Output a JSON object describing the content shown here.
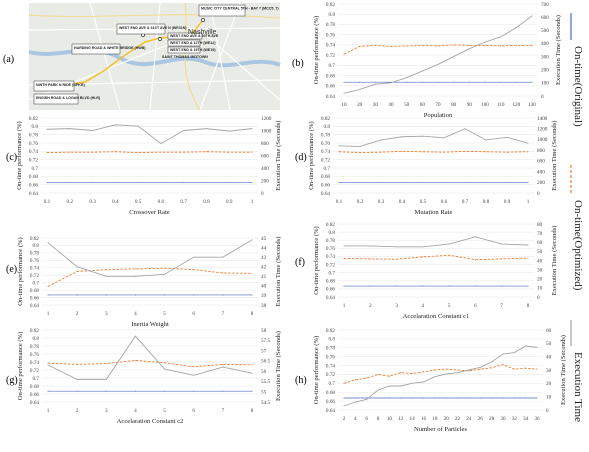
{
  "colors": {
    "original": "#4a6fc4",
    "optimized": "#ed7d31",
    "exec": "#a5a5a5",
    "map_bg": "#e9ebe6",
    "route": "#f2c232"
  },
  "legend": {
    "original": "On-time(Original)",
    "optimized": "On-time(Optimized)",
    "exec": "Execution Time"
  },
  "map": {
    "letter": "(a)",
    "city": "Nashville",
    "stops": [
      "MUSIC CITY CENTRAL 5TH - BAY 7 (MCC5_7)",
      "WEST END AVE & 31ST AVE N (WE31N)",
      "HARDING ROAD & WHITE BRIDGE (HWB)",
      "WEST END AVE & 20TH AVE",
      "WEST END & 12TH (WE12)",
      "WEST END & 19TH (WE19)",
      "SAINT THOMAS MIDTOWN",
      "NINTH PARK N RIDE (NPKR)",
      "ENGISH ROAD & LOGAN BLVD (HLR)"
    ]
  },
  "chart_data": [
    {
      "panel": "(b)",
      "type": "line",
      "xlabel": "Population",
      "ylabel": "On-time performance (%)",
      "y2label": "Execution Time (Seconds)",
      "x": [
        10,
        20,
        30,
        40,
        50,
        60,
        70,
        80,
        90,
        100,
        110,
        120,
        130
      ],
      "xticks": [
        10,
        20,
        30,
        40,
        50,
        60,
        70,
        80,
        90,
        100,
        110,
        120,
        130
      ],
      "ylim": [
        0.64,
        0.82
      ],
      "yticks": [
        "0.64",
        "0.66",
        "0.68",
        "0.7",
        "0.72",
        "0.74",
        "0.76",
        "0.78",
        "0.8",
        "0.82"
      ],
      "y2lim": [
        0,
        700
      ],
      "y2ticks": [
        "0",
        "100",
        "200",
        "300",
        "400",
        "500",
        "600",
        "700"
      ],
      "original": [
        0.667,
        0.667,
        0.667,
        0.667,
        0.667,
        0.667,
        0.667,
        0.667,
        0.667,
        0.667,
        0.667,
        0.667,
        0.667
      ],
      "optimized": [
        0.722,
        0.737,
        0.739,
        0.737,
        0.738,
        0.739,
        0.738,
        0.74,
        0.739,
        0.739,
        0.738,
        0.739,
        0.739
      ],
      "exec": [
        20,
        50,
        90,
        100,
        140,
        190,
        240,
        300,
        360,
        410,
        450,
        520,
        610
      ]
    },
    {
      "panel": "(c)",
      "type": "line",
      "xlabel": "Crossover Rate",
      "ylabel": "On-time performance (%)",
      "y2label": "Execution Time (Seconds)",
      "x": [
        0.1,
        0.2,
        0.3,
        0.4,
        0.5,
        0.6,
        0.7,
        0.8,
        0.9,
        1
      ],
      "xticks": [
        "0.1",
        "0.2",
        "0.3",
        "0.4",
        "0.5",
        "0.6",
        "0.7",
        "0.8",
        "0.9",
        "1"
      ],
      "ylim": [
        0.64,
        0.82
      ],
      "yticks": [
        "0.64",
        "0.66",
        "0.68",
        "0.7",
        "0.72",
        "0.74",
        "0.76",
        "0.78",
        "0.8",
        "0.82"
      ],
      "y2lim": [
        0,
        1200
      ],
      "y2ticks": [
        "0",
        "200",
        "400",
        "600",
        "800",
        "1000",
        "1200"
      ],
      "original": [
        0.665,
        0.665,
        0.665,
        0.665,
        0.665,
        0.665,
        0.665,
        0.665,
        0.665,
        0.665
      ],
      "optimized": [
        0.737,
        0.738,
        0.738,
        0.739,
        0.737,
        0.738,
        0.738,
        0.739,
        0.738,
        0.738
      ],
      "exec": [
        1020,
        1030,
        1000,
        1090,
        1070,
        790,
        1000,
        1030,
        990,
        1030
      ]
    },
    {
      "panel": "(d)",
      "type": "line",
      "xlabel": "Mutation Rate",
      "ylabel": "On-time performance (%)",
      "y2label": "Execution Time (Seconds)",
      "x": [
        0.1,
        0.2,
        0.3,
        0.4,
        0.5,
        0.6,
        0.7,
        0.8,
        0.9,
        1
      ],
      "xticks": [
        "0.1",
        "0.2",
        "0.3",
        "0.4",
        "0.5",
        "0.6",
        "0.7",
        "0.8",
        "0.9",
        "1"
      ],
      "ylim": [
        0.64,
        0.82
      ],
      "yticks": [
        "0.64",
        "0.66",
        "0.68",
        "0.7",
        "0.72",
        "0.74",
        "0.76",
        "0.78",
        "0.8",
        "0.82"
      ],
      "y2lim": [
        0,
        1400
      ],
      "y2ticks": [
        "0",
        "200",
        "400",
        "600",
        "800",
        "1000",
        "1200",
        "1400"
      ],
      "original": [
        0.665,
        0.665,
        0.665,
        0.665,
        0.665,
        0.665,
        0.665,
        0.665,
        0.665,
        0.665
      ],
      "optimized": [
        0.739,
        0.737,
        0.738,
        0.74,
        0.739,
        0.738,
        0.74,
        0.739,
        0.738,
        0.739
      ],
      "exec": [
        880,
        870,
        990,
        1050,
        1060,
        1030,
        1200,
        990,
        1040,
        930
      ]
    },
    {
      "panel": "(e)",
      "type": "line",
      "xlabel": "Inertia Weight",
      "ylabel": "On-time performance (%)",
      "y2label": "Execution Time (Seconds)",
      "x": [
        1,
        2,
        3,
        4,
        5,
        6,
        7,
        8
      ],
      "xticks": [
        "1",
        "2",
        "3",
        "4",
        "5",
        "6",
        "7",
        "8"
      ],
      "ylim": [
        0.64,
        0.82
      ],
      "yticks": [
        "0.64",
        "0.66",
        "0.68",
        "0.7",
        "0.72",
        "0.74",
        "0.76",
        "0.78",
        "0.8",
        "0.82"
      ],
      "y2lim": [
        38,
        45
      ],
      "y2ticks": [
        "38",
        "39",
        "40",
        "41",
        "42",
        "43",
        "44",
        "45"
      ],
      "original": [
        0.667,
        0.667,
        0.667,
        0.667,
        0.667,
        0.667,
        0.667,
        0.667
      ],
      "optimized": [
        0.69,
        0.73,
        0.735,
        0.737,
        0.739,
        0.735,
        0.726,
        0.725
      ],
      "exec": [
        44.5,
        42.0,
        41.0,
        41.0,
        41.2,
        43.0,
        43.0,
        44.8
      ]
    },
    {
      "panel": "(f)",
      "type": "line",
      "xlabel": "Accelaration Constant c1",
      "ylabel": "On-time performance (%)",
      "y2label": "Execution Time (Seconds)",
      "x": [
        1,
        2,
        3,
        4,
        5,
        6,
        7,
        8
      ],
      "xticks": [
        "1",
        "2",
        "3",
        "4",
        "5",
        "6",
        "7",
        "8"
      ],
      "ylim": [
        0.64,
        0.82
      ],
      "yticks": [
        "0.64",
        "0.66",
        "0.68",
        "0.7",
        "0.72",
        "0.74",
        "0.76",
        "0.78",
        "0.8",
        "0.82"
      ],
      "y2lim": [
        0,
        80
      ],
      "y2ticks": [
        "0",
        "10",
        "20",
        "30",
        "40",
        "50",
        "60",
        "70",
        "80"
      ],
      "original": [
        0.667,
        0.667,
        0.667,
        0.667,
        0.667,
        0.667,
        0.667,
        0.667
      ],
      "optimized": [
        0.735,
        0.734,
        0.733,
        0.739,
        0.743,
        0.732,
        0.734,
        0.736
      ],
      "exec": [
        56,
        56,
        55,
        55,
        58,
        66,
        58,
        57
      ]
    },
    {
      "panel": "(g)",
      "type": "line",
      "xlabel": "Accelaration Constant c2",
      "ylabel": "On-time performance (%)",
      "y2label": "Execution Time (Seconds)",
      "x": [
        1,
        2,
        3,
        4,
        5,
        6,
        7,
        8
      ],
      "xticks": [
        "1",
        "2",
        "3",
        "4",
        "5",
        "6",
        "7",
        "8"
      ],
      "ylim": [
        0.64,
        0.82
      ],
      "yticks": [
        "0.64",
        "0.66",
        "0.68",
        "0.7",
        "0.72",
        "0.74",
        "0.76",
        "0.78",
        "0.8",
        "0.82"
      ],
      "y2lim": [
        54.5,
        58
      ],
      "y2ticks": [
        "54.5",
        "55",
        "55.5",
        "56",
        "56.5",
        "57",
        "57.5",
        "58"
      ],
      "original": [
        0.667,
        0.667,
        0.667,
        0.667,
        0.667,
        0.667,
        0.667,
        0.667
      ],
      "optimized": [
        0.737,
        0.734,
        0.736,
        0.744,
        0.738,
        0.728,
        0.734,
        0.733
      ],
      "exec": [
        56.3,
        55.6,
        55.6,
        57.7,
        56.1,
        55.8,
        56.2,
        55.9
      ]
    },
    {
      "panel": "(h)",
      "type": "line",
      "xlabel": "Number of Particles",
      "ylabel": "On-time performance (%)",
      "y2label": "Execution Time (Seconds)",
      "x": [
        2,
        4,
        6,
        8,
        10,
        12,
        14,
        16,
        18,
        20,
        22,
        24,
        26,
        28,
        30,
        32,
        34,
        36
      ],
      "xticks": [
        "2",
        "4",
        "6",
        "8",
        "10",
        "12",
        "14",
        "16",
        "18",
        "20",
        "22",
        "24",
        "26",
        "28",
        "30",
        "32",
        "34",
        "36"
      ],
      "ylim": [
        0.64,
        0.82
      ],
      "yticks": [
        "0.64",
        "0.66",
        "0.68",
        "0.7",
        "0.72",
        "0.74",
        "0.76",
        "0.78",
        "0.8",
        "0.82"
      ],
      "y2lim": [
        0,
        60
      ],
      "y2ticks": [
        "0",
        "10",
        "20",
        "30",
        "40",
        "50",
        "60"
      ],
      "original": [
        0.667,
        0.667,
        0.667,
        0.667,
        0.667,
        0.667,
        0.667,
        0.667,
        0.667,
        0.667,
        0.667,
        0.667,
        0.667,
        0.667,
        0.667,
        0.667,
        0.667,
        0.667
      ],
      "optimized": [
        0.7,
        0.708,
        0.712,
        0.72,
        0.716,
        0.724,
        0.722,
        0.726,
        0.73,
        0.732,
        0.73,
        0.728,
        0.732,
        0.735,
        0.742,
        0.732,
        0.734,
        0.732
      ],
      "exec": [
        3,
        6,
        8,
        15,
        18,
        18,
        20,
        21,
        25,
        27,
        28,
        30,
        32,
        36,
        42,
        43,
        48,
        47
      ]
    }
  ]
}
